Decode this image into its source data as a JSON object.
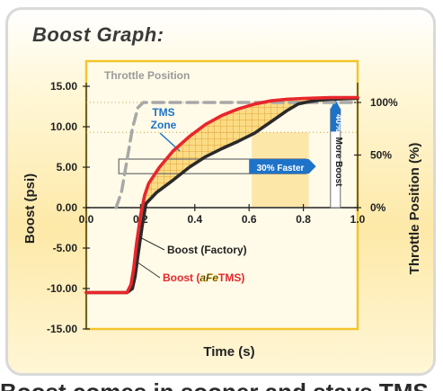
{
  "page": {
    "title": "Boost Graph:"
  },
  "chart_data": {
    "type": "line",
    "title": "Boost Graph:",
    "xlabel": "Time (s)",
    "ylabel": "Boost (psi)",
    "y2label": "Throttle Position (%)",
    "xlim": [
      0,
      1
    ],
    "ylim": [
      -15,
      15
    ],
    "y2lim": [
      0,
      100
    ],
    "x_ticks": [
      "0.0",
      "0.2",
      "0.4",
      "0.6",
      "0.8",
      "1.0"
    ],
    "y_ticks": [
      "15.00",
      "10.00",
      "5.00",
      "0.00",
      "-5.00",
      "-10.00",
      "-15.00"
    ],
    "y2_ticks": [
      "100%",
      "50%",
      "0%"
    ],
    "grid": false,
    "series": [
      {
        "name": "Throttle Position",
        "axis": "right",
        "color": "#a8a8a8",
        "style": "dashed",
        "x": [
          0.11,
          0.13,
          0.15,
          0.17,
          0.19,
          0.21,
          1.0
        ],
        "y": [
          0,
          15,
          45,
          75,
          95,
          100,
          100
        ]
      },
      {
        "name": "Boost (Factory)",
        "axis": "left",
        "color": "#2a2a2a",
        "x": [
          0.0,
          0.15,
          0.17,
          0.18,
          0.19,
          0.205,
          0.22,
          0.26,
          0.32,
          0.38,
          0.44,
          0.5,
          0.56,
          0.62,
          0.68,
          0.74,
          0.78,
          0.82,
          0.86,
          0.9,
          1.0
        ],
        "y": [
          -10.5,
          -10.5,
          -10.0,
          -8.5,
          -6.0,
          -2.5,
          0.5,
          1.9,
          3.4,
          5.0,
          6.3,
          7.3,
          8.2,
          9.2,
          10.6,
          12.0,
          12.8,
          13.1,
          13.3,
          13.4,
          13.5
        ]
      },
      {
        "name": "Boost (aFe TMS)",
        "axis": "left",
        "color": "#e8262b",
        "x": [
          0.0,
          0.15,
          0.165,
          0.175,
          0.185,
          0.2,
          0.215,
          0.23,
          0.27,
          0.32,
          0.38,
          0.44,
          0.5,
          0.56,
          0.62,
          0.68,
          0.74,
          0.8,
          0.85,
          0.9,
          1.0
        ],
        "y": [
          -10.5,
          -10.5,
          -9.5,
          -7.5,
          -4.5,
          -1.0,
          1.5,
          3.0,
          5.0,
          7.0,
          8.8,
          10.3,
          11.4,
          12.2,
          12.8,
          13.2,
          13.4,
          13.5,
          13.55,
          13.6,
          13.6
        ]
      }
    ],
    "annotations": {
      "throttle_label": "Throttle Position",
      "tms_zone_line1": "TMS",
      "tms_zone_line2": "Zone",
      "faster_label": "30% Faster",
      "more_boost_pct": "40%",
      "more_boost_text": "More Boost",
      "factory_label": "Boost (Factory)",
      "tms_label_prefix": "Boost (",
      "tms_label_logo": "aFe",
      "tms_label_suffix": "TMS)"
    },
    "colors": {
      "tms_curve": "#e8262b",
      "factory_curve": "#2a2a2a",
      "throttle_curve": "#a8a8a8",
      "accent_blue": "#1e73c8",
      "zone_fill": "#f7c233",
      "plot_border": "#f2c52e"
    }
  },
  "footer_fragment": "Boost comes in sooner and stays TMS"
}
